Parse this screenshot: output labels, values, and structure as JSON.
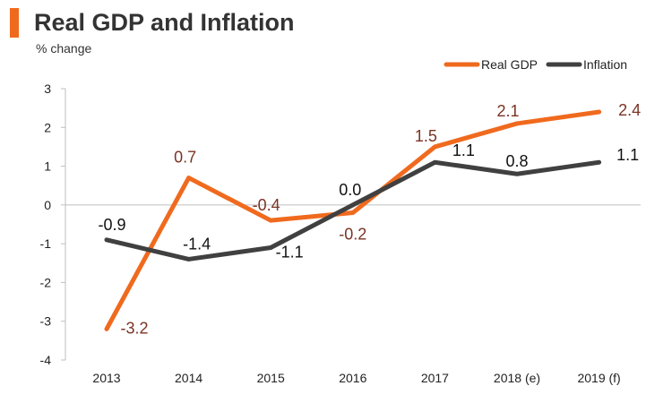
{
  "chart_data": {
    "type": "line",
    "title": "Real GDP and Inflation",
    "subtitle": "% change",
    "categories": [
      "2013",
      "2014",
      "2015",
      "2016",
      "2017",
      "2018 (e)",
      "2019 (f)"
    ],
    "series": [
      {
        "name": "Real GDP",
        "color": "#f06a1e",
        "label_color": "#7a3324",
        "values": [
          -3.2,
          0.7,
          -0.4,
          -0.2,
          1.5,
          2.1,
          2.4
        ],
        "labels": [
          "-3.2",
          "0.7",
          "-0.4",
          "-0.2",
          "1.5",
          "2.1",
          "2.4"
        ]
      },
      {
        "name": "Inflation",
        "color": "#404040",
        "label_color": "#111111",
        "values": [
          -0.9,
          -1.4,
          -1.1,
          0.0,
          1.1,
          0.8,
          1.1
        ],
        "labels": [
          "-0.9",
          "-1.4",
          "-1.1",
          "0.0",
          "1.1",
          "0.8",
          "1.1"
        ]
      }
    ],
    "ylim": [
      -4,
      3
    ],
    "yticks": [
      "3",
      "2",
      "1",
      "0",
      "-1",
      "-2",
      "-3",
      "-4"
    ],
    "xlabel": "",
    "ylabel": "",
    "legend": "top-right",
    "grid": false
  }
}
